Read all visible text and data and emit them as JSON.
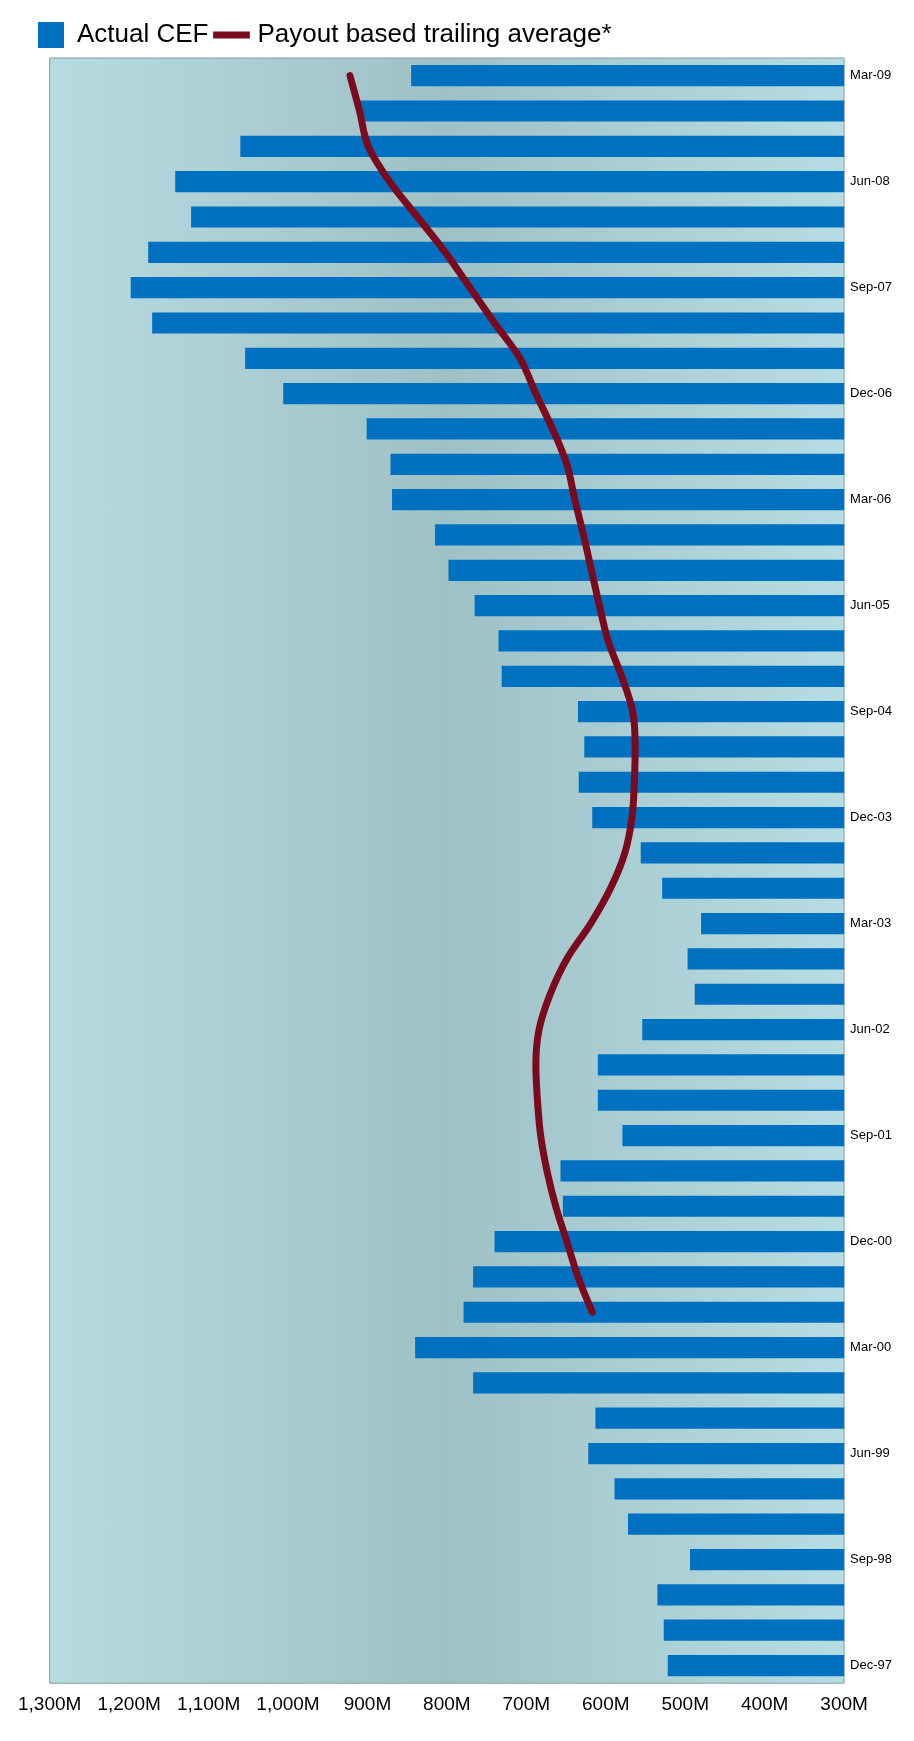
{
  "chart_data": {
    "type": "bar",
    "orientation": "horizontal",
    "legend": "top",
    "marker": "none",
    "categories": [
      "Mar-09",
      null,
      null,
      "Jun-08",
      null,
      null,
      "Sep-07",
      null,
      null,
      "Dec-06",
      null,
      null,
      "Mar-06",
      null,
      null,
      "Jun-05",
      null,
      null,
      "Sep-04",
      null,
      null,
      "Dec-03",
      null,
      null,
      "Mar-03",
      null,
      null,
      "Jun-02",
      null,
      null,
      "Sep-01",
      null,
      null,
      "Dec-00",
      null,
      null,
      "Mar-00",
      null,
      null,
      "Jun-99",
      null,
      null,
      "Sep-98",
      null,
      null,
      "Dec-97"
    ],
    "series": [
      {
        "name": "Actual CEF",
        "color": "#0070c0",
        "values": [
          845,
          910,
          1060,
          1142,
          1122,
          1176,
          1198,
          1171,
          1054,
          1006,
          901,
          871,
          869,
          815,
          798,
          765,
          735,
          731,
          635,
          627,
          634,
          617,
          556,
          529,
          480,
          497,
          488,
          554,
          610,
          610,
          579,
          657,
          654,
          740,
          767,
          779,
          840,
          767,
          613,
          622,
          589,
          572,
          494,
          535,
          527,
          522
        ]
      },
      {
        "name": "Payout based trailing average*",
        "type": "line",
        "color": "#7b0a1e",
        "values": [
          922,
          910,
          899,
          872,
          837,
          802,
          771,
          740,
          708,
          688,
          667,
          649,
          639,
          628,
          618,
          608,
          597,
          580,
          566,
          563,
          564,
          567,
          576,
          594,
          619,
          649,
          670,
          684,
          688,
          686,
          682,
          674,
          663,
          649,
          635,
          617,
          null,
          null,
          null,
          null,
          null,
          null,
          null,
          null,
          null,
          null
        ]
      }
    ],
    "xlim": [
      1300,
      300
    ],
    "xticks": [
      {
        "value": 1300,
        "label": "1,300M"
      },
      {
        "value": 1200,
        "label": "1,200M"
      },
      {
        "value": 1100,
        "label": "1,100M"
      },
      {
        "value": 1000,
        "label": "1,000M"
      },
      {
        "value": 900,
        "label": "900M"
      },
      {
        "value": 800,
        "label": "800M"
      },
      {
        "value": 700,
        "label": "700M"
      },
      {
        "value": 600,
        "label": "600M"
      },
      {
        "value": 500,
        "label": "500M"
      },
      {
        "value": 400,
        "label": "400M"
      },
      {
        "value": 300,
        "label": "300M"
      }
    ]
  }
}
